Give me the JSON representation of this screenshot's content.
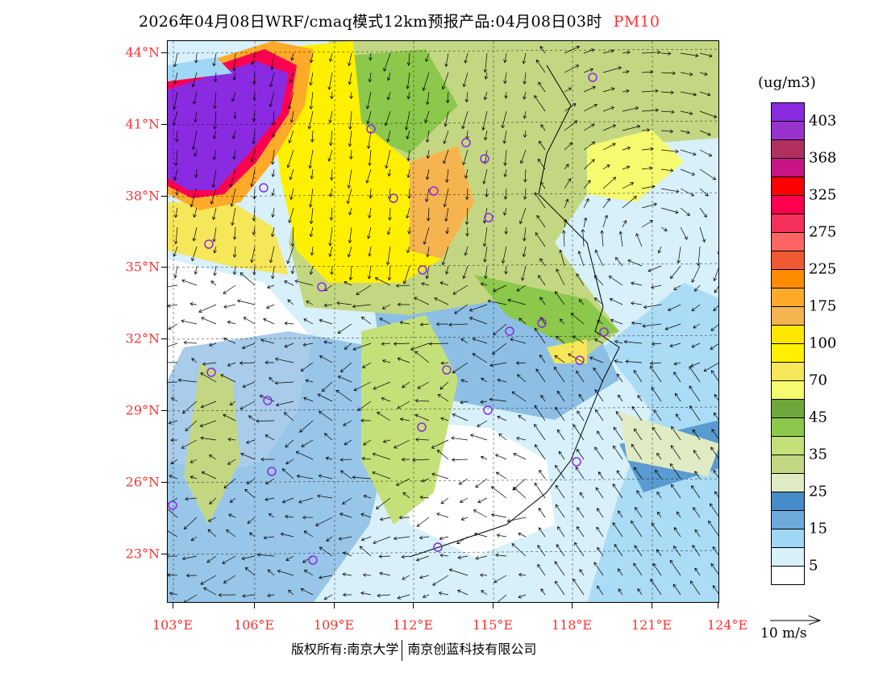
{
  "title": {
    "main": "2026年04月08日WRF/cmaq模式12km预报产品:04月08日03时",
    "species": "PM10",
    "species_color": "#ff3030"
  },
  "axes": {
    "lat_labels": [
      "44°N",
      "41°N",
      "38°N",
      "35°N",
      "32°N",
      "29°N",
      "26°N",
      "23°N"
    ],
    "lon_labels": [
      "103°E",
      "106°E",
      "109°E",
      "112°E",
      "115°E",
      "118°E",
      "121°E",
      "124°E"
    ]
  },
  "legend": {
    "unit": "(ug/m3)",
    "colors": [
      "#8a2be2",
      "#9932cc",
      "#b03060",
      "#c71585",
      "#ff0000",
      "#ff0050",
      "#f5305a",
      "#ff6464",
      "#f05a32",
      "#ff8c00",
      "#ffaa28",
      "#f5b450",
      "#ffe600",
      "#fff000",
      "#f5e65a",
      "#f5fa6e",
      "#6ea83c",
      "#8cc84b",
      "#c3e178",
      "#c3d782",
      "#e1ebc3",
      "#468cc8",
      "#6eaadc",
      "#a0d7f5",
      "#d7f0fa",
      "#ffffff"
    ],
    "labels": [
      "403",
      "368",
      "325",
      "275",
      "225",
      "175",
      "100",
      "70",
      "45",
      "35",
      "25",
      "15",
      "5"
    ],
    "wind_reference": "10 m/s"
  },
  "footer": {
    "copyright_left": "版权所有:南京大学",
    "copyright_right": "南京创蓝科技有限公司"
  }
}
